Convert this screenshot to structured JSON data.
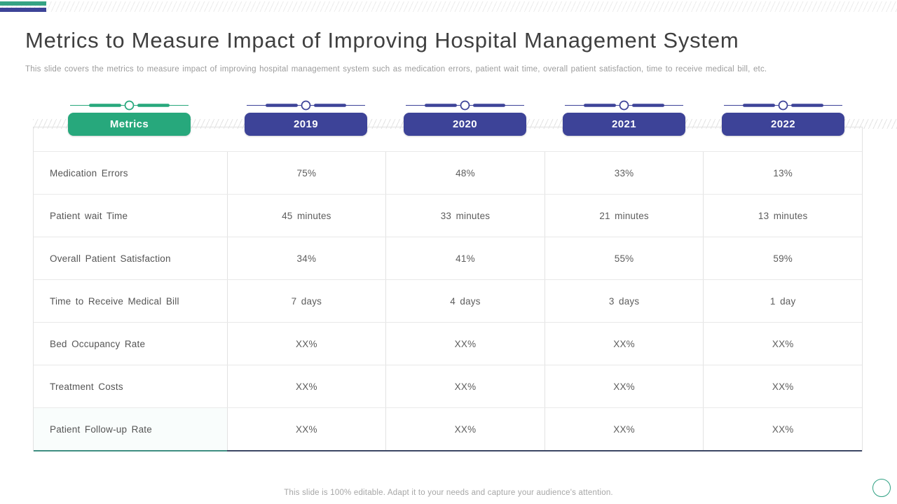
{
  "slide": {
    "title": "Metrics to Measure Impact of Improving Hospital Management System",
    "subtitle": "This slide covers the metrics to measure impact of improving hospital management system such as medication errors, patient wait time, overall patient satisfaction, time to receive medical bill, etc.",
    "footer": "This slide is 100% editable. Adapt it to your needs and capture your audience's attention."
  },
  "colors": {
    "green": "#27a87c",
    "indigo": "#3d4398",
    "teal_bar": "#35a384",
    "indigo_bar": "#3d4398",
    "bottom_border_teal": "#3e8e81",
    "bottom_border_navy": "#3c4664",
    "corner_circle": "#2fa183"
  },
  "table": {
    "headers": [
      {
        "label": "Metrics",
        "accent": "green"
      },
      {
        "label": "2019",
        "accent": "indigo"
      },
      {
        "label": "2020",
        "accent": "indigo"
      },
      {
        "label": "2021",
        "accent": "indigo"
      },
      {
        "label": "2022",
        "accent": "indigo"
      }
    ],
    "rows": [
      {
        "metric": "Medication Errors",
        "values": [
          "75%",
          "48%",
          "33%",
          "13%"
        ]
      },
      {
        "metric": "Patient wait Time",
        "values": [
          "45 minutes",
          "33 minutes",
          "21 minutes",
          "13 minutes"
        ]
      },
      {
        "metric": "Overall Patient Satisfaction",
        "values": [
          "34%",
          "41%",
          "55%",
          "59%"
        ]
      },
      {
        "metric": "Time to Receive Medical Bill",
        "values": [
          "7 days",
          "4 days",
          "3 days",
          "1 day"
        ]
      },
      {
        "metric": "Bed Occupancy Rate",
        "values": [
          "XX%",
          "XX%",
          "XX%",
          "XX%"
        ]
      },
      {
        "metric": "Treatment Costs",
        "values": [
          "XX%",
          "XX%",
          "XX%",
          "XX%"
        ]
      },
      {
        "metric": "Patient Follow-up Rate",
        "values": [
          "XX%",
          "XX%",
          "XX%",
          "XX%"
        ]
      }
    ]
  }
}
